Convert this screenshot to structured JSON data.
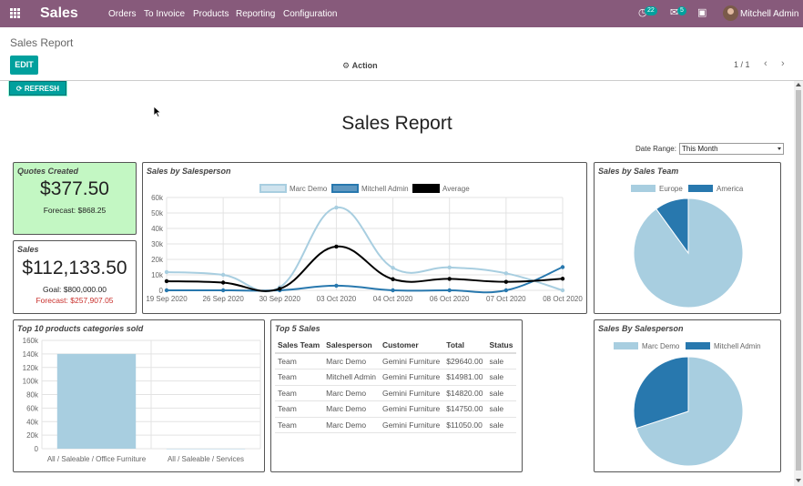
{
  "navbar": {
    "brand": "Sales",
    "menu": [
      "Orders",
      "To Invoice",
      "Products",
      "Reporting",
      "Configuration"
    ],
    "activity_count": "22",
    "message_count": "5",
    "user": "Mitchell Admin"
  },
  "control_panel": {
    "breadcrumb": "Sales Report",
    "edit_label": "EDIT",
    "action_label": "Action",
    "pager": "1 / 1"
  },
  "report": {
    "refresh_label": "REFRESH",
    "title": "Sales Report",
    "date_range_label": "Date Range:",
    "date_range_value": "This Month"
  },
  "quotes": {
    "title": "Quotes Created",
    "amount": "$377.50",
    "forecast": "Forecast: $868.25"
  },
  "sales": {
    "title": "Sales",
    "amount": "$112,133.50",
    "goal": "Goal: $800,000.00",
    "forecast": "Forecast: $257,907.05"
  },
  "top5": {
    "title": "Top 5 Sales",
    "headers": [
      "Sales Team",
      "Salesperson",
      "Customer",
      "Total",
      "Status"
    ],
    "rows": [
      [
        "Team",
        "Marc Demo",
        "Gemini Furniture",
        "$29640.00",
        "sale"
      ],
      [
        "Team",
        "Mitchell Admin",
        "Gemini Furniture",
        "$14981.00",
        "sale"
      ],
      [
        "Team",
        "Marc Demo",
        "Gemini Furniture",
        "$14820.00",
        "sale"
      ],
      [
        "Team",
        "Marc Demo",
        "Gemini Furniture",
        "$14750.00",
        "sale"
      ],
      [
        "Team",
        "Marc Demo",
        "Gemini Furniture",
        "$11050.00",
        "sale"
      ]
    ]
  },
  "colors": {
    "purple": "#875A7B",
    "teal": "#00A09D",
    "light_blue": "#A8CEE0",
    "dark_blue": "#2878AE",
    "green_panel": "#C3F7C3",
    "red": "#C9302C"
  },
  "chart_data": [
    {
      "type": "line",
      "title": "Sales by Salesperson",
      "x": [
        "19 Sep 2020",
        "26 Sep 2020",
        "30 Sep 2020",
        "03 Oct 2020",
        "04 Oct 2020",
        "06 Oct 2020",
        "07 Oct 2020",
        "08 Oct 2020"
      ],
      "ylim": [
        0,
        60000
      ],
      "yticks": [
        "0",
        "10k",
        "20k",
        "30k",
        "40k",
        "50k",
        "60k"
      ],
      "series": [
        {
          "name": "Marc Demo",
          "values": [
            11800,
            10000,
            2000,
            53500,
            14500,
            14800,
            11000,
            0
          ]
        },
        {
          "name": "Mitchell Admin",
          "values": [
            0,
            0,
            0,
            3000,
            0,
            0,
            0,
            15000
          ]
        },
        {
          "name": "Average",
          "values": [
            5900,
            5000,
            1000,
            28300,
            7200,
            7400,
            5500,
            7500
          ]
        }
      ],
      "legend": "top"
    },
    {
      "type": "pie",
      "title": "Sales by Sales Team",
      "labels": [
        "Europe",
        "America"
      ],
      "values": [
        90,
        10
      ],
      "legend": "top"
    },
    {
      "type": "bar",
      "title": "Top 10 products categories sold",
      "categories": [
        "All / Saleable / Office Furniture",
        "All / Saleable / Services"
      ],
      "values": [
        140000,
        0
      ],
      "ylim": [
        0,
        160000
      ],
      "yticks": [
        "0",
        "20k",
        "40k",
        "60k",
        "80k",
        "100k",
        "120k",
        "140k",
        "160k"
      ]
    },
    {
      "type": "pie",
      "title": "Sales By Salesperson",
      "labels": [
        "Marc Demo",
        "Mitchell Admin"
      ],
      "values": [
        70,
        30
      ],
      "legend": "top"
    }
  ]
}
